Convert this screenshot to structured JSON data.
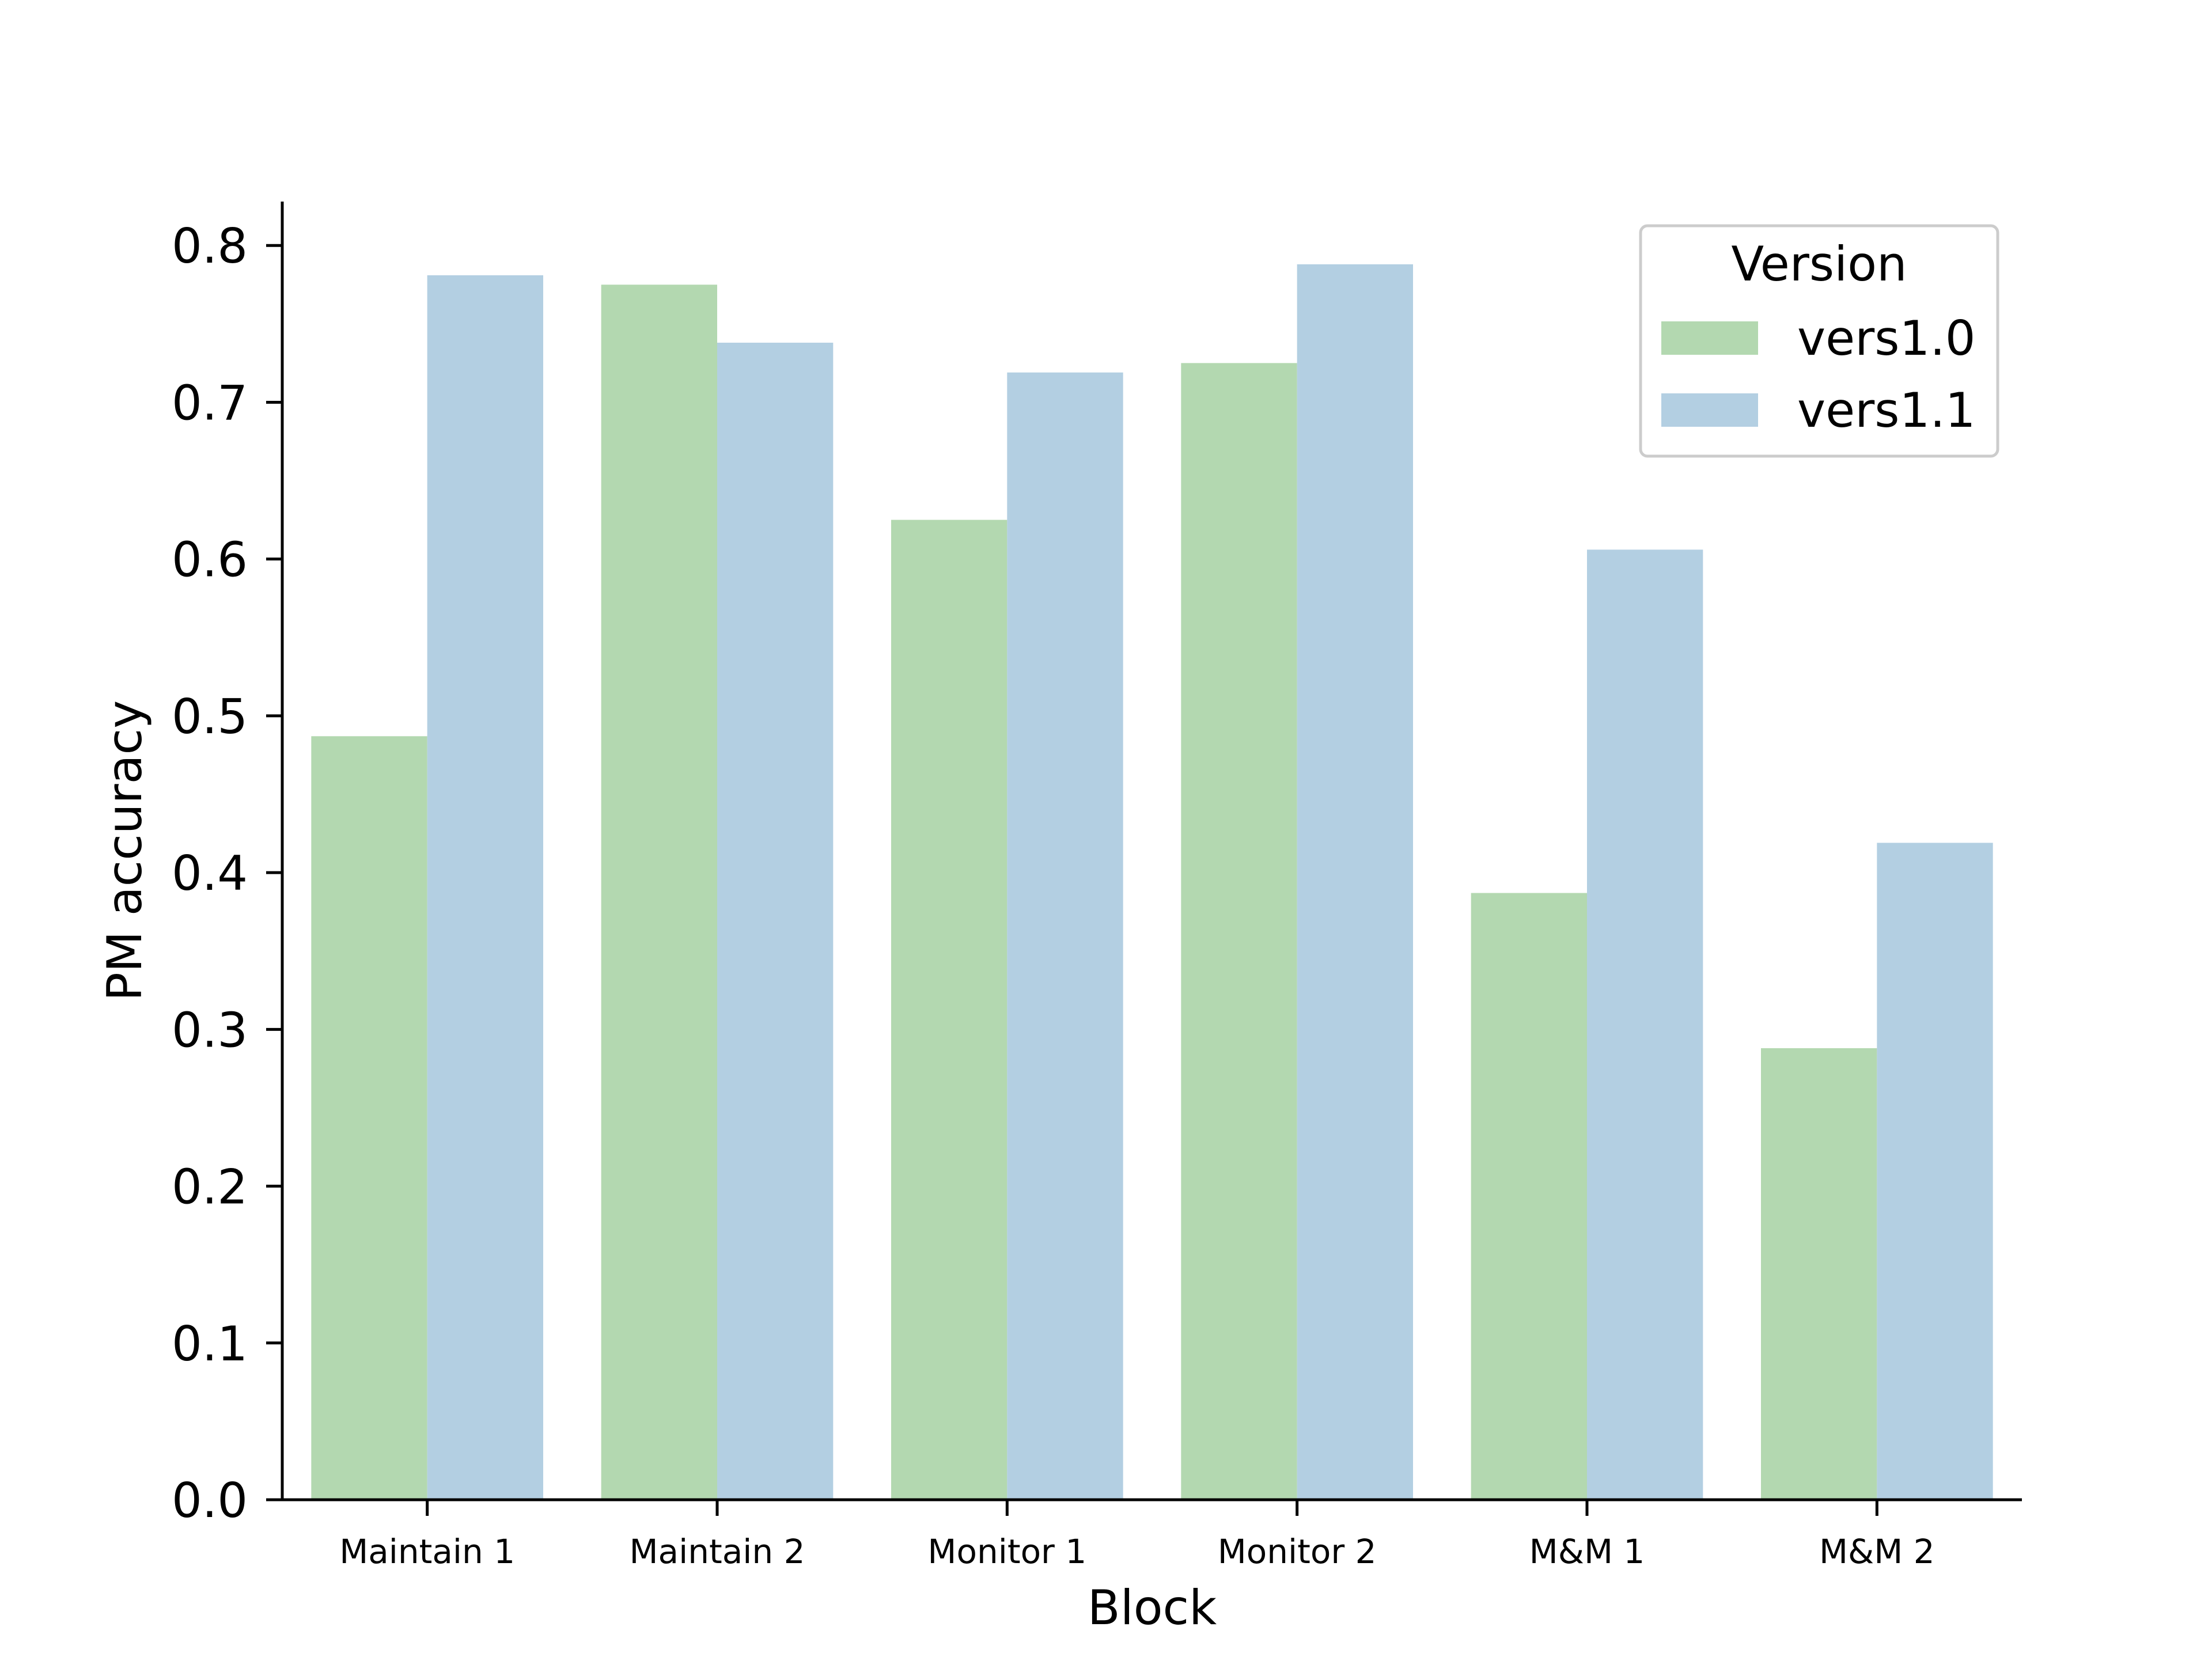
{
  "chart_data": {
    "type": "bar",
    "title": "",
    "xlabel": "Block",
    "ylabel": "PM accuracy",
    "categories": [
      "Maintain 1",
      "Maintain 2",
      "Monitor 1",
      "Monitor 2",
      "M&M 1",
      "M&M 2"
    ],
    "series": [
      {
        "name": "vers1.0",
        "color": "#b3d8b0",
        "values": [
          0.487,
          0.775,
          0.625,
          0.725,
          0.387,
          0.288
        ]
      },
      {
        "name": "vers1.1",
        "color": "#b3cfe2",
        "values": [
          0.781,
          0.738,
          0.719,
          0.788,
          0.606,
          0.419
        ]
      }
    ],
    "ylim": [
      0,
      0.828
    ],
    "yticks": [
      "0.0",
      "0.1",
      "0.2",
      "0.3",
      "0.4",
      "0.5",
      "0.6",
      "0.7",
      "0.8"
    ],
    "grid": false,
    "legend": {
      "title": "Version",
      "placement": "top-right"
    }
  }
}
